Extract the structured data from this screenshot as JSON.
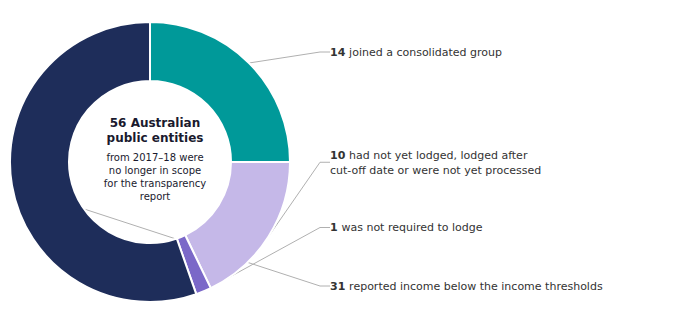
{
  "chart_data": {
    "type": "pie",
    "title": "56 Australian\npublic entities",
    "subtitle": "from 2017–18 were\nno longer in scope\nfor the transparency\nreport",
    "categories": [
      "joined a consolidated group",
      "had not yet lodged, lodged after\ncut-off date or were not yet processed",
      "was not required to lodge",
      "reported income below the income thresholds"
    ],
    "values": [
      14,
      10,
      1,
      31
    ],
    "colors": [
      "#009999",
      "#c5b8e8",
      "#7b68c8",
      "#1e2d5a"
    ],
    "data_labels": true
  }
}
